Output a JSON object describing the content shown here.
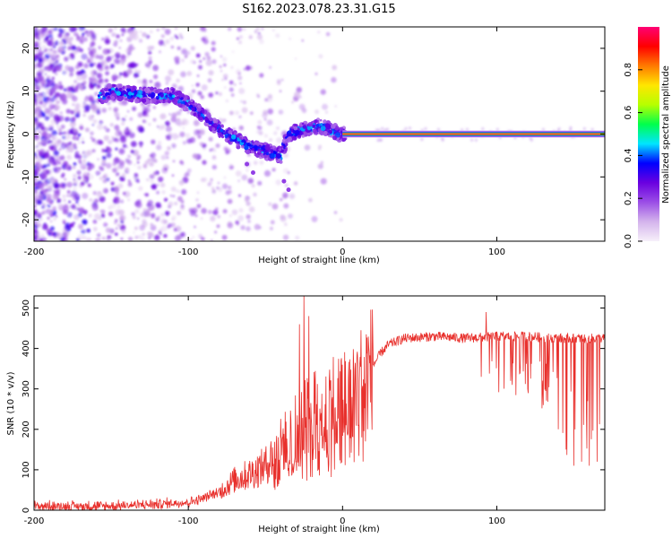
{
  "title": "S162.2023.078.23.31.G15",
  "colors": {
    "snr_line": "#e8302c",
    "frame": "#000000",
    "background": "#ffffff",
    "colorbar_stops": [
      "#f7f0fa",
      "#d4b4ec",
      "#9b4ee6",
      "#6a00e0",
      "#0000ff",
      "#00e5ff",
      "#00ff4c",
      "#b6ff00",
      "#ffe600",
      "#ff7a00",
      "#ff0000",
      "#ff0074"
    ]
  },
  "chart_data": [
    {
      "type": "heatmap",
      "title": "",
      "xlabel": "Height of straight line (km)",
      "ylabel": "Frequency (Hz)",
      "xlim": [
        -200,
        170
      ],
      "ylim": [
        -25,
        25
      ],
      "xticks": [
        -200,
        -100,
        0,
        100
      ],
      "yticks": [
        -20,
        -10,
        0,
        10,
        20
      ],
      "colorbar": {
        "label": "Normalized spectral amplitude",
        "range": [
          0,
          1
        ],
        "ticks": [
          0.0,
          0.2,
          0.4,
          0.6,
          0.8
        ]
      },
      "grid": false,
      "ridge": {
        "description_points": [
          {
            "x": -155,
            "y": 9
          },
          {
            "x": -150,
            "y": 10
          },
          {
            "x": -128,
            "y": 9
          },
          {
            "x": -110,
            "y": 9
          },
          {
            "x": -100,
            "y": 7
          },
          {
            "x": -90,
            "y": 4
          },
          {
            "x": -80,
            "y": 1
          },
          {
            "x": -70,
            "y": -1
          },
          {
            "x": -60,
            "y": -3
          },
          {
            "x": -50,
            "y": -4
          },
          {
            "x": -40,
            "y": -5
          },
          {
            "x": -35,
            "y": 0
          },
          {
            "x": -25,
            "y": 1
          },
          {
            "x": -15,
            "y": 2
          },
          {
            "x": -5,
            "y": 0.5
          },
          {
            "x": 0,
            "y": 0
          },
          {
            "x": 170,
            "y": 0
          }
        ],
        "steady_from_x": 0,
        "steady_y": 0
      }
    },
    {
      "type": "line",
      "title": "",
      "xlabel": "Height of straight line (km)",
      "ylabel": "SNR (10 * v/v)",
      "xlim": [
        -200,
        170
      ],
      "ylim": [
        0,
        530
      ],
      "xticks": [
        -200,
        -100,
        0,
        100
      ],
      "yticks": [
        0,
        100,
        200,
        300,
        400,
        500
      ],
      "grid": false,
      "series": [
        {
          "envelope": {
            "x": [
              -200,
              -150,
              -120,
              -100,
              -90,
              -80,
              -70,
              -60,
              -50,
              -40,
              -30,
              -20,
              -10,
              0,
              10,
              20,
              25,
              30,
              40,
              60,
              80,
              100,
              120,
              140,
              150,
              160,
              170
            ],
            "y": [
              10,
              10,
              15,
              20,
              30,
              45,
              75,
              90,
              110,
              160,
              200,
              240,
              270,
              280,
              310,
              360,
              390,
              410,
              425,
              430,
              425,
              430,
              430,
              425,
              425,
              425,
              425
            ]
          },
          "spikes": [
            {
              "x": -25,
              "y": 530
            },
            {
              "x": -22,
              "y": 480
            },
            {
              "x": -28,
              "y": 460
            },
            {
              "x": 93,
              "y": 490
            }
          ],
          "dips": [
            {
              "x": 90,
              "y": 330
            },
            {
              "x": 110,
              "y": 310
            },
            {
              "x": 120,
              "y": 300
            },
            {
              "x": 130,
              "y": 260
            },
            {
              "x": 140,
              "y": 200
            },
            {
              "x": 145,
              "y": 150
            },
            {
              "x": 150,
              "y": 110
            },
            {
              "x": 155,
              "y": 120
            },
            {
              "x": 160,
              "y": 110
            },
            {
              "x": 165,
              "y": 120
            }
          ]
        }
      ]
    }
  ]
}
